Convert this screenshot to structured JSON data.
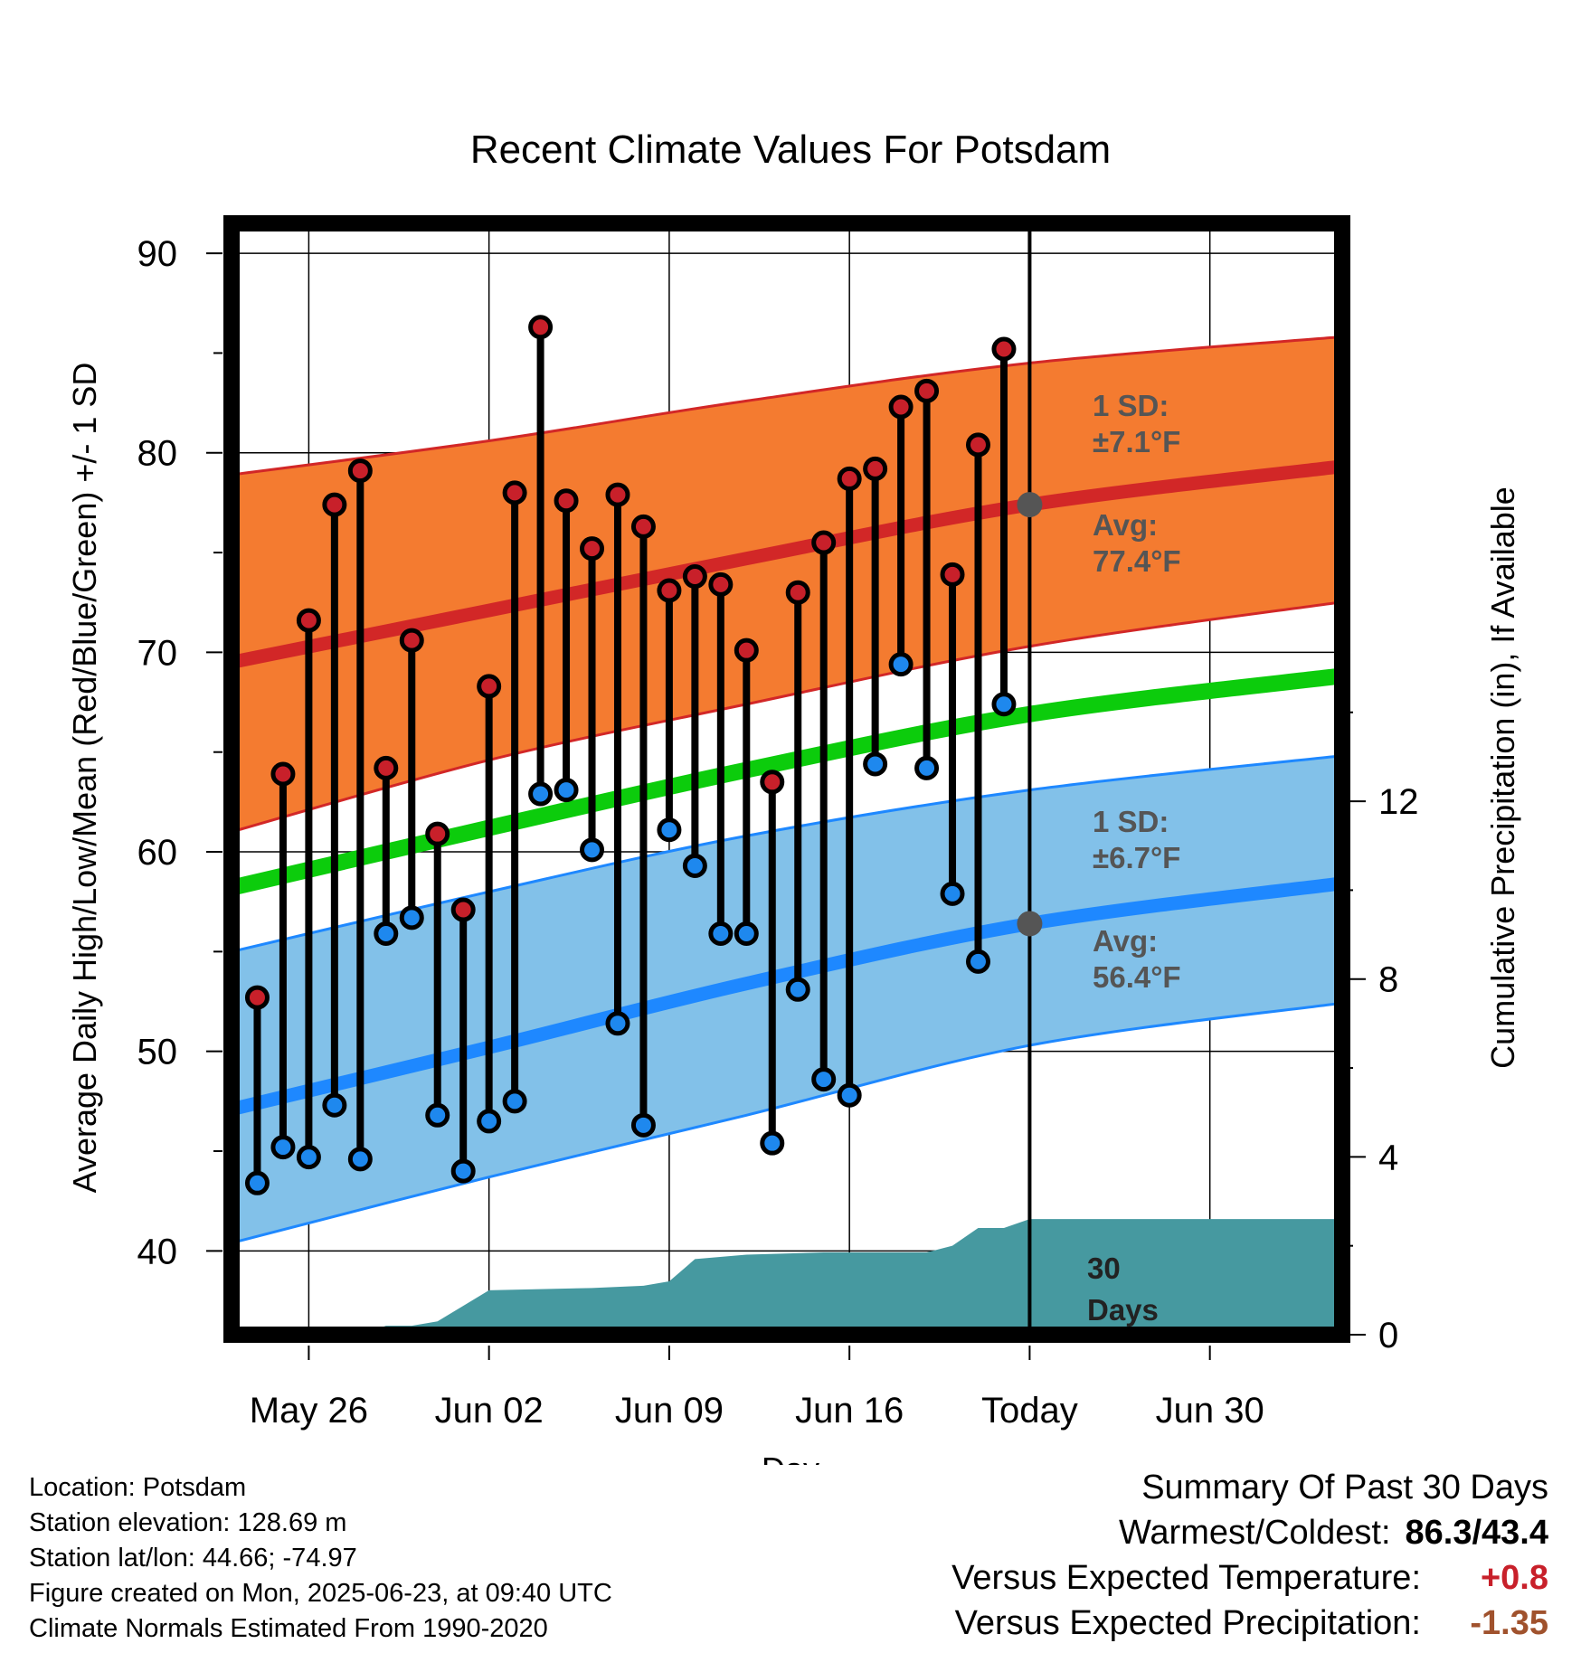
{
  "title": "Recent Climate Values For Potsdam",
  "chart_data": {
    "type": "line",
    "title": "Recent Climate Values For Potsdam",
    "xlabel": "Day",
    "ylabel": "Average Daily High/Low/Mean (Red/Blue/Green) +/- 1 SD",
    "y2label": "Cumulative Precipitation (in), If Available",
    "xlim": [
      "2025-05-23",
      "2025-07-05"
    ],
    "ylim": [
      35.8,
      91.5
    ],
    "y2lim": [
      0,
      25
    ],
    "x_ticks": [
      {
        "date": "2025-05-26",
        "label": "May 26"
      },
      {
        "date": "2025-06-02",
        "label": "Jun 02"
      },
      {
        "date": "2025-06-09",
        "label": "Jun 09"
      },
      {
        "date": "2025-06-16",
        "label": "Jun 16"
      },
      {
        "date": "2025-06-23",
        "label": "Today"
      },
      {
        "date": "2025-06-30",
        "label": "Jun 30"
      }
    ],
    "y_ticks": [
      40,
      50,
      60,
      70,
      80,
      90
    ],
    "y2_ticks": [
      0,
      4,
      8,
      12
    ],
    "grid": true,
    "today": "2025-06-23",
    "normals": {
      "dates": [
        "2025-05-23",
        "2025-06-02",
        "2025-06-12",
        "2025-06-23",
        "2025-07-05"
      ],
      "high_mean": [
        69.5,
        72.1,
        74.7,
        77.4,
        79.3
      ],
      "high_upper": [
        78.9,
        80.6,
        82.6,
        84.5,
        85.8
      ],
      "high_lower": [
        61.0,
        64.6,
        67.4,
        70.3,
        72.5
      ],
      "low_mean": [
        47.1,
        50.2,
        53.4,
        56.4,
        58.4
      ],
      "low_upper": [
        55.0,
        58.0,
        60.8,
        63.1,
        64.8
      ],
      "low_lower": [
        40.4,
        43.7,
        46.8,
        50.3,
        52.4
      ],
      "daily_mean": [
        58.2,
        61.2,
        64.1,
        66.9,
        68.8
      ]
    },
    "series": [
      {
        "name": "High",
        "x": [
          "2025-05-24",
          "2025-05-25",
          "2025-05-26",
          "2025-05-27",
          "2025-05-28",
          "2025-05-29",
          "2025-05-30",
          "2025-05-31",
          "2025-06-01",
          "2025-06-02",
          "2025-06-03",
          "2025-06-04",
          "2025-06-05",
          "2025-06-06",
          "2025-06-07",
          "2025-06-08",
          "2025-06-09",
          "2025-06-10",
          "2025-06-11",
          "2025-06-12",
          "2025-06-13",
          "2025-06-14",
          "2025-06-15",
          "2025-06-16",
          "2025-06-17",
          "2025-06-18",
          "2025-06-19",
          "2025-06-20",
          "2025-06-21",
          "2025-06-22"
        ],
        "values": [
          52.7,
          63.9,
          71.6,
          77.4,
          79.1,
          64.2,
          70.6,
          60.9,
          57.1,
          68.3,
          78.0,
          86.3,
          77.6,
          75.2,
          77.9,
          76.3,
          73.1,
          73.8,
          73.4,
          70.1,
          63.5,
          73.0,
          75.5,
          78.7,
          79.2,
          82.3,
          83.1,
          73.9,
          80.4,
          85.2
        ]
      },
      {
        "name": "Low",
        "x": [
          "2025-05-24",
          "2025-05-25",
          "2025-05-26",
          "2025-05-27",
          "2025-05-28",
          "2025-05-29",
          "2025-05-30",
          "2025-05-31",
          "2025-06-01",
          "2025-06-02",
          "2025-06-03",
          "2025-06-04",
          "2025-06-05",
          "2025-06-06",
          "2025-06-07",
          "2025-06-08",
          "2025-06-09",
          "2025-06-10",
          "2025-06-11",
          "2025-06-12",
          "2025-06-13",
          "2025-06-14",
          "2025-06-15",
          "2025-06-16",
          "2025-06-17",
          "2025-06-18",
          "2025-06-19",
          "2025-06-20",
          "2025-06-21",
          "2025-06-22"
        ],
        "values": [
          43.4,
          45.2,
          44.7,
          47.3,
          44.6,
          55.9,
          56.7,
          46.8,
          44.0,
          46.5,
          47.5,
          62.9,
          63.1,
          60.1,
          51.4,
          46.3,
          61.1,
          59.3,
          55.9,
          55.9,
          45.4,
          53.1,
          48.6,
          47.8,
          64.4,
          69.4,
          64.2,
          57.9,
          54.5,
          67.4
        ]
      },
      {
        "name": "Cumulative Precipitation",
        "x": [
          "2025-05-23",
          "2025-05-26",
          "2025-05-27",
          "2025-05-28",
          "2025-05-29",
          "2025-05-30",
          "2025-05-31",
          "2025-06-02",
          "2025-06-06",
          "2025-06-08",
          "2025-06-09",
          "2025-06-10",
          "2025-06-12",
          "2025-06-15",
          "2025-06-18",
          "2025-06-19",
          "2025-06-20",
          "2025-06-21",
          "2025-06-22",
          "2025-06-23",
          "2025-07-05"
        ],
        "values": [
          0,
          0,
          0,
          0,
          0.2,
          0.2,
          0.3,
          1.0,
          1.05,
          1.1,
          1.2,
          1.7,
          1.8,
          1.85,
          1.85,
          1.85,
          2.0,
          2.4,
          2.4,
          2.6,
          2.6
        ]
      }
    ]
  },
  "annotations": {
    "high_sd_label": "1 SD:",
    "high_sd_value": "±7.1°F",
    "high_avg_label": "Avg:",
    "high_avg_value": "77.4°F",
    "low_sd_label": "1 SD:",
    "low_sd_value": "±6.7°F",
    "low_avg_label": "Avg:",
    "low_avg_value": "56.4°F",
    "days_number": "30",
    "days_word": "Days"
  },
  "colors": {
    "high_band": "#f47b30",
    "high_line": "#d22727",
    "low_band": "#82c1e9",
    "low_line": "#1e88ff",
    "mean_line": "#0ccc0c",
    "precip_fill": "#4699a0",
    "high_marker": "#c8202a",
    "low_marker": "#1e88ee"
  },
  "meta": {
    "location": "Location: Potsdam",
    "elevation": "Station elevation: 128.69 m",
    "latlon": "Station lat/lon: 44.66; -74.97",
    "created": "Figure created on Mon, 2025-06-23, at 09:40 UTC",
    "normals": "Climate Normals Estimated From 1990-2020"
  },
  "summary": {
    "heading": "Summary Of Past 30 Days",
    "warm_cold_label": "Warmest/Coldest:",
    "warm_cold_value": "86.3/43.4",
    "temp_label": "Versus Expected Temperature:",
    "temp_value": "+0.8",
    "temp_color": "#c8202a",
    "precip_label": "Versus Expected Precipitation:",
    "precip_value": "-1.35",
    "precip_color": "#a0522d"
  }
}
